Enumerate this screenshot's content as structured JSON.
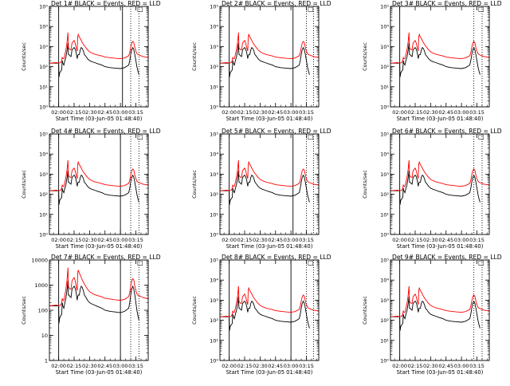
{
  "chart_data": {
    "type": "line",
    "x_tick_labels": [
      "02:00",
      "02:15",
      "02:30",
      "02:45",
      "03:00",
      "03:15"
    ],
    "x_tick_values_min": [
      0,
      15,
      30,
      45,
      60,
      75
    ],
    "x_range_min": [
      -9,
      87
    ],
    "xlabel": "Start Time (03-Jun-05 01:48:40)",
    "ylabel": "Counts/sec",
    "y_scale": "log",
    "legend_marker": "□",
    "colors": {
      "events": "#000000",
      "lld": "#ff0000",
      "axes": "#000000"
    },
    "panels": [
      {
        "title": "Det 1#  BLACK = Events, RED = LLD",
        "ylim": [
          1,
          100000
        ],
        "y_tick_labels": [
          "10⁰",
          "10¹",
          "10²",
          "10³",
          "10⁴",
          "10⁵"
        ],
        "vlines_solid_min": [
          0,
          62
        ],
        "vlines_dotted_min": [
          70,
          78
        ]
      },
      {
        "title": "Det 2#  BLACK = Events, RED = LLD",
        "ylim": [
          1,
          100000
        ],
        "y_tick_labels": [
          "10⁰",
          "10¹",
          "10²",
          "10³",
          "10⁴",
          "10⁵"
        ],
        "vlines_solid_min": [
          0,
          62
        ],
        "vlines_dotted_min": [
          75,
          82
        ]
      },
      {
        "title": "Det 3#  BLACK = Events, RED = LLD",
        "ylim": [
          1,
          100000
        ],
        "y_tick_labels": [
          "10⁰",
          "10¹",
          "10²",
          "10³",
          "10⁴",
          "10⁵"
        ],
        "vlines_solid_min": [
          0
        ],
        "vlines_dotted_min": [
          72,
          80
        ]
      },
      {
        "title": "Det 4#  BLACK = Events, RED = LLD",
        "ylim": [
          1,
          100000
        ],
        "y_tick_labels": [
          "10⁰",
          "10¹",
          "10²",
          "10³",
          "10⁴",
          "10⁵"
        ],
        "vlines_solid_min": [
          0,
          60
        ],
        "vlines_dotted_min": [
          70,
          78
        ]
      },
      {
        "title": "Det 5#  BLACK = Events, RED = LLD",
        "ylim": [
          1,
          100000
        ],
        "y_tick_labels": [
          "10⁰",
          "10¹",
          "10²",
          "10³",
          "10⁴",
          "10⁵"
        ],
        "vlines_solid_min": [
          0,
          62
        ],
        "vlines_dotted_min": [
          75,
          82
        ]
      },
      {
        "title": "Det 6#  BLACK = Events, RED = LLD",
        "ylim": [
          1,
          100000
        ],
        "y_tick_labels": [
          "10⁰",
          "10¹",
          "10²",
          "10³",
          "10⁴",
          "10⁵"
        ],
        "vlines_solid_min": [
          0
        ],
        "vlines_dotted_min": [
          72,
          80
        ]
      },
      {
        "title": "Det 7#  BLACK = Events, RED = LLD",
        "ylim": [
          1,
          10000
        ],
        "y_tick_labels": [
          "1",
          "10",
          "100",
          "1000",
          "10000"
        ],
        "vlines_solid_min": [
          0,
          60
        ],
        "vlines_dotted_min": [
          70,
          78
        ]
      },
      {
        "title": "Det 8#  BLACK = Events, RED = LLD",
        "ylim": [
          1,
          100000
        ],
        "y_tick_labels": [
          "10⁰",
          "10¹",
          "10²",
          "10³",
          "10⁴",
          "10⁵"
        ],
        "vlines_solid_min": [
          0,
          60
        ],
        "vlines_dotted_min": [
          75,
          82
        ]
      },
      {
        "title": "Det 9#  BLACK = Events, RED = LLD",
        "ylim": [
          1,
          100000
        ],
        "y_tick_labels": [
          "10⁰",
          "10¹",
          "10²",
          "10³",
          "10⁴",
          "10⁵"
        ],
        "vlines_solid_min": [
          0
        ],
        "vlines_dotted_min": [
          72,
          80
        ]
      }
    ],
    "series": [
      {
        "name": "Events",
        "color": "#000000",
        "x_min": [
          -9,
          -2,
          -0.5,
          0,
          0.3,
          1,
          2,
          3,
          3.5,
          4,
          5,
          6,
          7,
          8,
          9,
          9.5,
          10,
          11,
          12,
          13,
          15,
          16,
          17,
          18,
          18.5,
          19,
          20,
          21,
          22,
          23,
          24,
          25,
          26,
          27,
          28,
          30,
          32,
          35,
          38,
          42,
          45,
          50,
          55,
          60,
          64,
          68,
          69,
          70,
          71,
          72,
          73,
          74,
          75,
          76,
          77,
          78
        ],
        "y": [
          150,
          150,
          150,
          150,
          30,
          50,
          60,
          70,
          200,
          150,
          120,
          200,
          300,
          600,
          1500,
          400,
          400,
          350,
          320,
          700,
          900,
          750,
          500,
          250,
          350,
          400,
          400,
          700,
          900,
          800,
          600,
          400,
          350,
          300,
          250,
          200,
          180,
          160,
          140,
          120,
          100,
          90,
          85,
          80,
          90,
          120,
          200,
          400,
          700,
          900,
          700,
          400,
          200,
          100,
          60,
          40
        ]
      },
      {
        "name": "LLD",
        "color": "#ff0000",
        "x_min": [
          -9,
          -2,
          0,
          2,
          3,
          3.5,
          4,
          5,
          6,
          7,
          8,
          9,
          9.5,
          10,
          11,
          12,
          13,
          15,
          16,
          17,
          18,
          18.5,
          19,
          20,
          21,
          22,
          23,
          24,
          25,
          26,
          27,
          28,
          30,
          32,
          35,
          38,
          42,
          45,
          50,
          55,
          60,
          64,
          68,
          69,
          70,
          71,
          72,
          73,
          74,
          75,
          76,
          77,
          78,
          80,
          82,
          85,
          87
        ],
        "y": [
          150,
          160,
          150,
          160,
          200,
          300,
          250,
          250,
          400,
          700,
          1500,
          5000,
          900,
          800,
          700,
          700,
          1500,
          2000,
          1500,
          900,
          600,
          3000,
          4000,
          3000,
          2500,
          2000,
          1600,
          1300,
          1100,
          950,
          800,
          700,
          550,
          480,
          420,
          380,
          340,
          300,
          280,
          260,
          250,
          270,
          350,
          500,
          900,
          1500,
          1800,
          1600,
          900,
          600,
          450,
          400,
          380,
          350,
          320,
          300,
          280
        ]
      }
    ]
  }
}
